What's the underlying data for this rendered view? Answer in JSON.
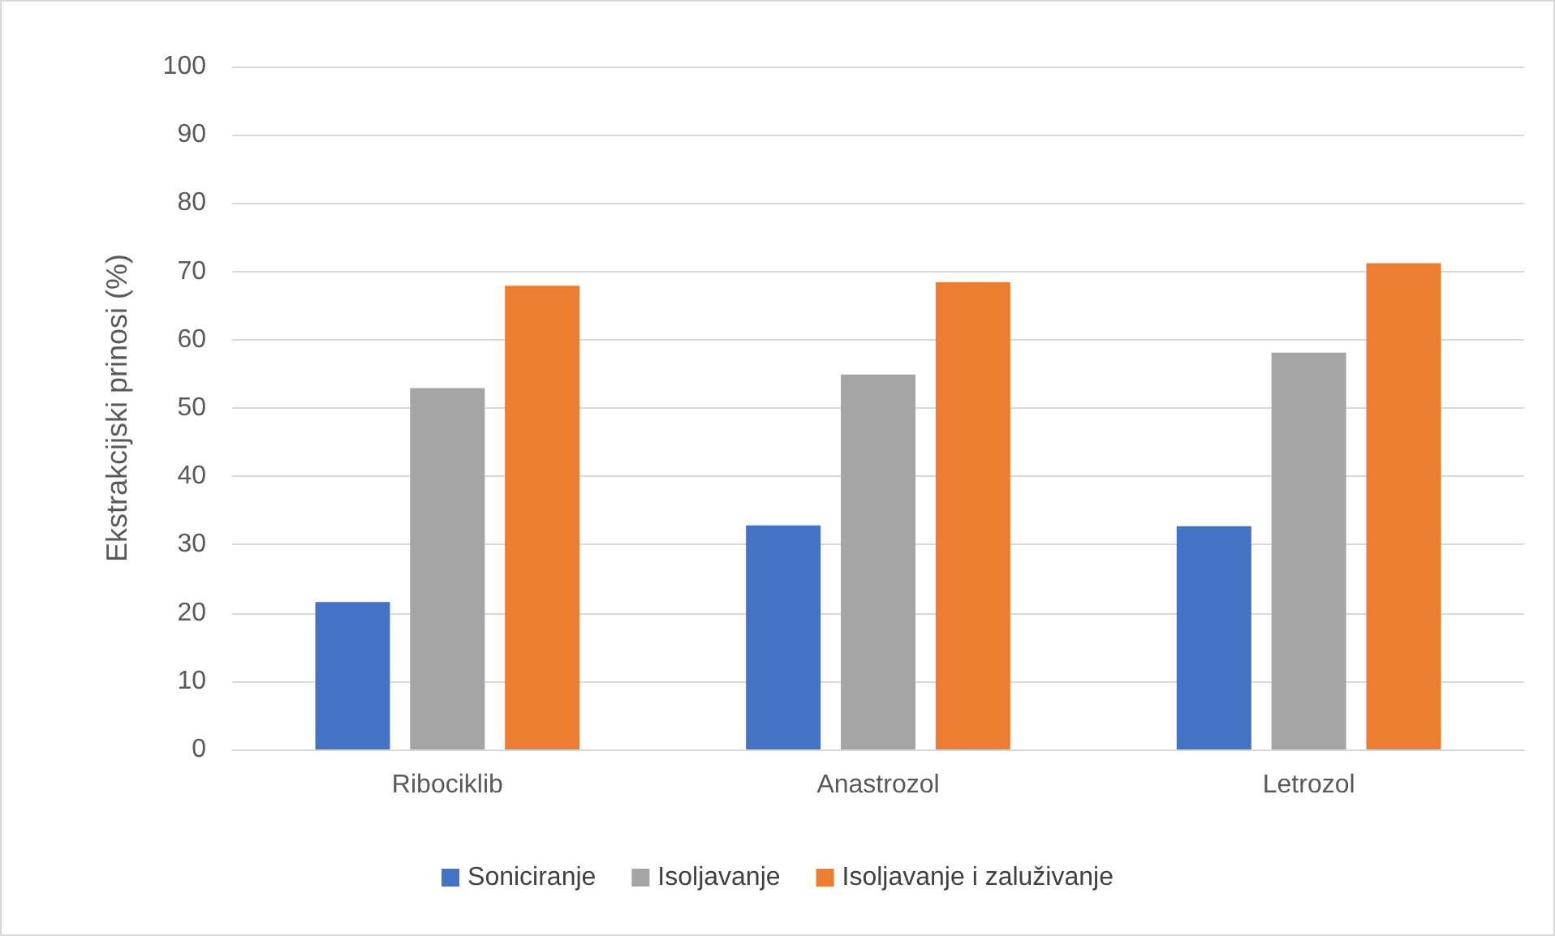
{
  "chart_data": {
    "type": "bar",
    "ylabel": "Ekstrakcijski prinosi (%)",
    "categories": [
      "Ribociklib",
      "Anastrozol",
      "Letrozol"
    ],
    "series": [
      {
        "name": "Soniciranje",
        "color": "#4472c4",
        "values": [
          21.6,
          32.8,
          32.7
        ]
      },
      {
        "name": "Isoljavanje",
        "color": "#a5a5a5",
        "values": [
          52.9,
          54.9,
          58.1
        ]
      },
      {
        "name": "Isoljavanje i zaluživanje",
        "color": "#ed7d31",
        "values": [
          67.9,
          68.4,
          71.2
        ]
      }
    ],
    "ylim": [
      0,
      100
    ],
    "yticks": [
      0,
      10,
      20,
      30,
      40,
      50,
      60,
      70,
      80,
      90,
      100
    ],
    "grid": "y",
    "legend": "bottom"
  }
}
